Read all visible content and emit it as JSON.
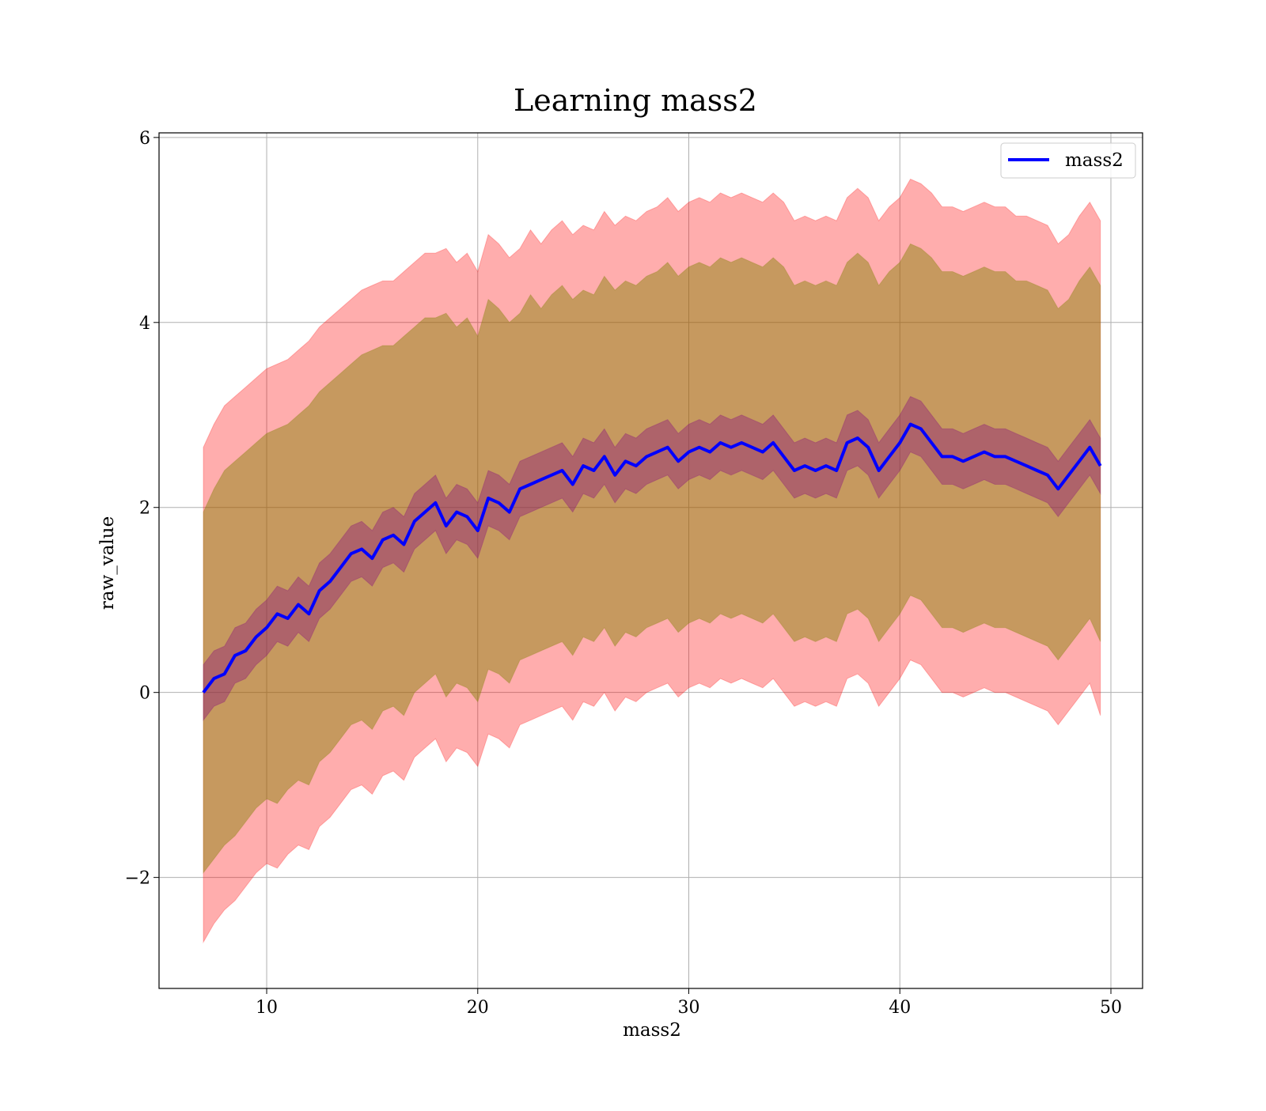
{
  "chart_data": {
    "type": "line",
    "title": "Learning mass2",
    "xlabel": "mass2",
    "ylabel": "raw_value",
    "xlim": [
      4.9,
      51.5
    ],
    "ylim": [
      -3.2,
      6.05
    ],
    "xticks": [
      10,
      20,
      30,
      40,
      50
    ],
    "yticks": [
      -2,
      0,
      2,
      4,
      6
    ],
    "xtick_labels": [
      "10",
      "20",
      "30",
      "40",
      "50"
    ],
    "ytick_labels": [
      "−2",
      "0",
      "2",
      "4",
      "6"
    ],
    "grid": true,
    "legend_position": "top-right",
    "colors": {
      "line": "#0000ff",
      "outer_band": "#ff0000",
      "inner_band": "#800080",
      "middle_band": "#808000",
      "grid": "#b0b0b0"
    },
    "series": [
      {
        "name": "mass2",
        "x": [
          7.0,
          7.5,
          8.0,
          8.5,
          9.0,
          9.5,
          10.0,
          10.5,
          11.0,
          11.5,
          12.0,
          12.5,
          13.0,
          13.5,
          14.0,
          14.5,
          15.0,
          15.5,
          16.0,
          16.5,
          17.0,
          17.5,
          18.0,
          18.5,
          19.0,
          19.5,
          20.0,
          20.5,
          21.0,
          21.5,
          22.0,
          22.5,
          23.0,
          23.5,
          24.0,
          24.5,
          25.0,
          25.5,
          26.0,
          26.5,
          27.0,
          27.5,
          28.0,
          28.5,
          29.0,
          29.5,
          30.0,
          30.5,
          31.0,
          31.5,
          32.0,
          32.5,
          33.0,
          33.5,
          34.0,
          34.5,
          35.0,
          35.5,
          36.0,
          36.5,
          37.0,
          37.5,
          38.0,
          38.5,
          39.0,
          39.5,
          40.0,
          40.5,
          41.0,
          41.5,
          42.0,
          42.5,
          43.0,
          43.5,
          44.0,
          44.5,
          45.0,
          45.5,
          46.0,
          46.5,
          47.0,
          47.5,
          48.0,
          48.5,
          49.0,
          49.5
        ],
        "values": [
          0.0,
          0.15,
          0.2,
          0.4,
          0.45,
          0.6,
          0.7,
          0.85,
          0.8,
          0.95,
          0.85,
          1.1,
          1.2,
          1.35,
          1.5,
          1.55,
          1.45,
          1.65,
          1.7,
          1.6,
          1.85,
          1.95,
          2.05,
          1.8,
          1.95,
          1.9,
          1.75,
          2.1,
          2.05,
          1.95,
          2.2,
          2.25,
          2.3,
          2.35,
          2.4,
          2.25,
          2.45,
          2.4,
          2.55,
          2.35,
          2.5,
          2.45,
          2.55,
          2.6,
          2.65,
          2.5,
          2.6,
          2.65,
          2.6,
          2.7,
          2.65,
          2.7,
          2.65,
          2.6,
          2.7,
          2.55,
          2.4,
          2.45,
          2.4,
          2.45,
          2.4,
          2.7,
          2.75,
          2.65,
          2.4,
          2.55,
          2.7,
          2.9,
          2.85,
          2.7,
          2.55,
          2.55,
          2.5,
          2.55,
          2.6,
          2.55,
          2.55,
          2.5,
          2.45,
          2.4,
          2.35,
          2.2,
          2.35,
          2.5,
          2.65,
          2.45
        ]
      }
    ],
    "bands": [
      {
        "id": "outer",
        "upper": [
          2.65,
          2.9,
          3.1,
          3.2,
          3.3,
          3.4,
          3.5,
          3.55,
          3.6,
          3.7,
          3.8,
          3.95,
          4.05,
          4.15,
          4.25,
          4.35,
          4.4,
          4.45,
          4.45,
          4.55,
          4.65,
          4.75,
          4.75,
          4.8,
          4.65,
          4.75,
          4.55,
          4.95,
          4.85,
          4.7,
          4.8,
          5.0,
          4.85,
          5.0,
          5.1,
          4.95,
          5.05,
          5.0,
          5.2,
          5.05,
          5.15,
          5.1,
          5.2,
          5.25,
          5.35,
          5.2,
          5.3,
          5.35,
          5.3,
          5.4,
          5.35,
          5.4,
          5.35,
          5.3,
          5.4,
          5.3,
          5.1,
          5.15,
          5.1,
          5.15,
          5.1,
          5.35,
          5.45,
          5.35,
          5.1,
          5.25,
          5.35,
          5.55,
          5.5,
          5.4,
          5.25,
          5.25,
          5.2,
          5.25,
          5.3,
          5.25,
          5.25,
          5.15,
          5.15,
          5.1,
          5.05,
          4.85,
          4.95,
          5.15,
          5.3,
          5.1
        ],
        "lower": [
          -2.7,
          -2.5,
          -2.35,
          -2.25,
          -2.1,
          -1.95,
          -1.85,
          -1.9,
          -1.75,
          -1.65,
          -1.7,
          -1.45,
          -1.35,
          -1.2,
          -1.05,
          -1.0,
          -1.1,
          -0.9,
          -0.85,
          -0.95,
          -0.7,
          -0.6,
          -0.5,
          -0.75,
          -0.6,
          -0.65,
          -0.8,
          -0.45,
          -0.5,
          -0.6,
          -0.35,
          -0.3,
          -0.25,
          -0.2,
          -0.15,
          -0.3,
          -0.1,
          -0.15,
          0.0,
          -0.2,
          -0.05,
          -0.1,
          0.0,
          0.05,
          0.1,
          -0.05,
          0.05,
          0.1,
          0.05,
          0.15,
          0.1,
          0.15,
          0.1,
          0.05,
          0.15,
          0.0,
          -0.15,
          -0.1,
          -0.15,
          -0.1,
          -0.15,
          0.15,
          0.2,
          0.1,
          -0.15,
          0.0,
          0.15,
          0.35,
          0.3,
          0.15,
          0.0,
          0.0,
          -0.05,
          0.0,
          0.05,
          0.0,
          0.0,
          -0.05,
          -0.1,
          -0.15,
          -0.2,
          -0.35,
          -0.2,
          -0.05,
          0.1,
          -0.25
        ]
      },
      {
        "id": "middle",
        "upper": [
          1.95,
          2.2,
          2.4,
          2.5,
          2.6,
          2.7,
          2.8,
          2.85,
          2.9,
          3.0,
          3.1,
          3.25,
          3.35,
          3.45,
          3.55,
          3.65,
          3.7,
          3.75,
          3.75,
          3.85,
          3.95,
          4.05,
          4.05,
          4.1,
          3.95,
          4.05,
          3.85,
          4.25,
          4.15,
          4.0,
          4.1,
          4.3,
          4.15,
          4.3,
          4.4,
          4.25,
          4.35,
          4.3,
          4.5,
          4.35,
          4.45,
          4.4,
          4.5,
          4.55,
          4.65,
          4.5,
          4.6,
          4.65,
          4.6,
          4.7,
          4.65,
          4.7,
          4.65,
          4.6,
          4.7,
          4.6,
          4.4,
          4.45,
          4.4,
          4.45,
          4.4,
          4.65,
          4.75,
          4.65,
          4.4,
          4.55,
          4.65,
          4.85,
          4.8,
          4.7,
          4.55,
          4.55,
          4.5,
          4.55,
          4.6,
          4.55,
          4.55,
          4.45,
          4.45,
          4.4,
          4.35,
          4.15,
          4.25,
          4.45,
          4.6,
          4.4
        ],
        "lower": [
          -1.95,
          -1.8,
          -1.65,
          -1.55,
          -1.4,
          -1.25,
          -1.15,
          -1.2,
          -1.05,
          -0.95,
          -1.0,
          -0.75,
          -0.65,
          -0.5,
          -0.35,
          -0.3,
          -0.4,
          -0.2,
          -0.15,
          -0.25,
          0.0,
          0.1,
          0.2,
          -0.05,
          0.1,
          0.05,
          -0.1,
          0.25,
          0.2,
          0.1,
          0.35,
          0.4,
          0.45,
          0.5,
          0.55,
          0.4,
          0.6,
          0.55,
          0.7,
          0.5,
          0.65,
          0.6,
          0.7,
          0.75,
          0.8,
          0.65,
          0.75,
          0.8,
          0.75,
          0.85,
          0.8,
          0.85,
          0.8,
          0.75,
          0.85,
          0.7,
          0.55,
          0.6,
          0.55,
          0.6,
          0.55,
          0.85,
          0.9,
          0.8,
          0.55,
          0.7,
          0.85,
          1.05,
          1.0,
          0.85,
          0.7,
          0.7,
          0.65,
          0.7,
          0.75,
          0.7,
          0.7,
          0.65,
          0.6,
          0.55,
          0.5,
          0.35,
          0.5,
          0.65,
          0.8,
          0.55
        ]
      },
      {
        "id": "inner",
        "upper": [
          0.3,
          0.45,
          0.5,
          0.7,
          0.75,
          0.9,
          1.0,
          1.15,
          1.1,
          1.25,
          1.15,
          1.4,
          1.5,
          1.65,
          1.8,
          1.85,
          1.75,
          1.95,
          2.0,
          1.9,
          2.15,
          2.25,
          2.35,
          2.1,
          2.25,
          2.2,
          2.05,
          2.4,
          2.35,
          2.25,
          2.5,
          2.55,
          2.6,
          2.65,
          2.7,
          2.55,
          2.75,
          2.7,
          2.85,
          2.65,
          2.8,
          2.75,
          2.85,
          2.9,
          2.95,
          2.8,
          2.9,
          2.95,
          2.9,
          3.0,
          2.95,
          3.0,
          2.95,
          2.9,
          3.0,
          2.85,
          2.7,
          2.75,
          2.7,
          2.75,
          2.7,
          3.0,
          3.05,
          2.95,
          2.7,
          2.85,
          3.0,
          3.2,
          3.15,
          3.0,
          2.85,
          2.85,
          2.8,
          2.85,
          2.9,
          2.85,
          2.85,
          2.8,
          2.75,
          2.7,
          2.65,
          2.5,
          2.65,
          2.8,
          2.95,
          2.75
        ],
        "lower": [
          -0.3,
          -0.15,
          -0.1,
          0.1,
          0.15,
          0.3,
          0.4,
          0.55,
          0.5,
          0.65,
          0.55,
          0.8,
          0.9,
          1.05,
          1.2,
          1.25,
          1.15,
          1.35,
          1.4,
          1.3,
          1.55,
          1.65,
          1.75,
          1.5,
          1.65,
          1.6,
          1.45,
          1.8,
          1.75,
          1.65,
          1.9,
          1.95,
          2.0,
          2.05,
          2.1,
          1.95,
          2.15,
          2.1,
          2.25,
          2.05,
          2.2,
          2.15,
          2.25,
          2.3,
          2.35,
          2.2,
          2.3,
          2.35,
          2.3,
          2.4,
          2.35,
          2.4,
          2.35,
          2.3,
          2.4,
          2.25,
          2.1,
          2.15,
          2.1,
          2.15,
          2.1,
          2.4,
          2.45,
          2.35,
          2.1,
          2.25,
          2.4,
          2.6,
          2.55,
          2.4,
          2.25,
          2.25,
          2.2,
          2.25,
          2.3,
          2.25,
          2.25,
          2.2,
          2.15,
          2.1,
          2.05,
          1.9,
          2.05,
          2.2,
          2.35,
          2.15
        ]
      }
    ]
  }
}
